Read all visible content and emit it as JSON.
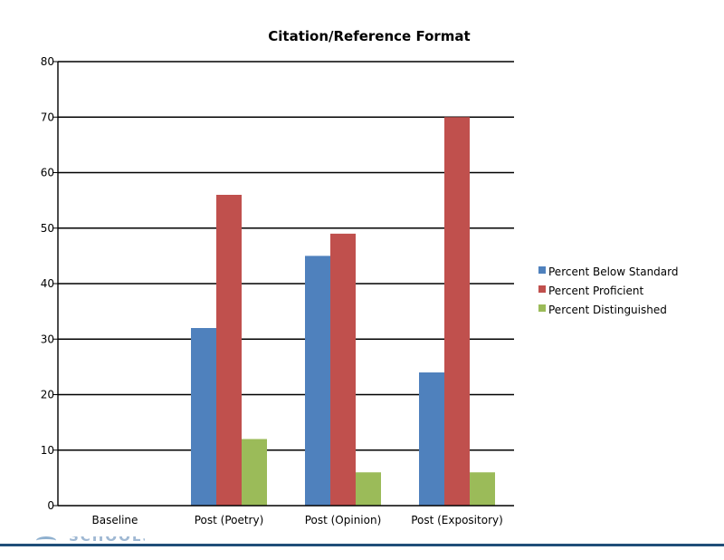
{
  "chart_data": {
    "type": "bar",
    "title": "Citation/Reference Format",
    "xlabel": "",
    "ylabel": "",
    "ylim": [
      0,
      80
    ],
    "yticks": [
      0,
      10,
      20,
      30,
      40,
      50,
      60,
      70,
      80
    ],
    "grid": true,
    "legend_position": "right",
    "categories": [
      "Baseline",
      "Post (Poetry)",
      "Post (Opinion)",
      "Post (Expository)"
    ],
    "series": [
      {
        "name": "Percent Below Standard",
        "color": "#4f81bd",
        "values": [
          0,
          32,
          45,
          24
        ]
      },
      {
        "name": "Percent Proficient",
        "color": "#c0504d",
        "values": [
          0,
          56,
          49,
          70
        ]
      },
      {
        "name": "Percent Distinguished",
        "color": "#9bbb59",
        "values": [
          0,
          12,
          6,
          6
        ]
      }
    ]
  },
  "footer": {
    "logo_text": "SCHOOLS",
    "accent_color": "#1f4e79"
  }
}
